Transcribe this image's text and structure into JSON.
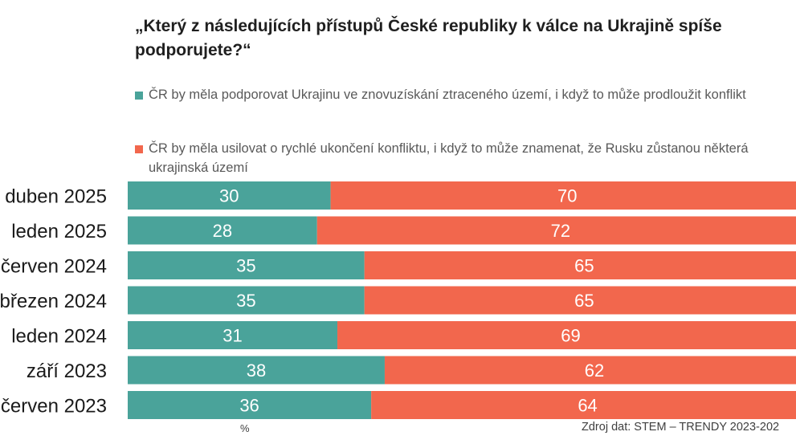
{
  "chart_data": {
    "type": "bar",
    "orientation": "horizontal",
    "stacked": true,
    "title": "„Který z následujících přístupů České republiky k válce na Ukrajině spíše podporujete?“",
    "categories": [
      "duben 2025",
      "leden 2025",
      "červen 2024",
      "březen 2024",
      "leden 2024",
      "září 2023",
      "červen 2023"
    ],
    "series": [
      {
        "name": "ČR by měla podporovat Ukrajinu ve znovuzískání ztraceného území, i když to může prodloužit konflikt",
        "color": "#4aa39a",
        "values": [
          30,
          28,
          35,
          35,
          31,
          38,
          36
        ]
      },
      {
        "name": "ČR by měla usilovat o rychlé ukončení konfliktu, i když to může znamenat, že Rusku zůstanou některá ukrajinská území",
        "color": "#f2674d",
        "values": [
          70,
          72,
          65,
          65,
          69,
          62,
          64
        ]
      }
    ],
    "unit": "%",
    "xlim": [
      0,
      100
    ],
    "legend": "top",
    "grid": false
  },
  "footer": {
    "unit_label": "%",
    "source": "Zdroj dat: STEM – TRENDY 2023-202"
  }
}
